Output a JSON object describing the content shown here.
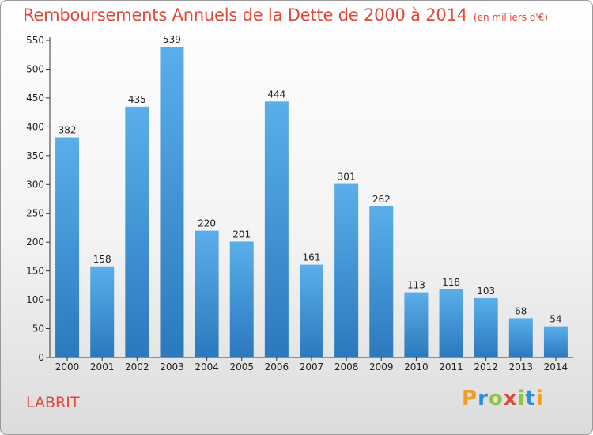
{
  "title": "Remboursements Annuels de la Dette de 2000 à 2014",
  "subtitle": "(en milliers d'€)",
  "commune": "LABRIT",
  "logo": {
    "letters": [
      "P",
      "r",
      "o",
      "x",
      "i",
      "t",
      "i"
    ],
    "colors": [
      "#f39c1f",
      "#2a8fd6",
      "#8cc63f",
      "#e1473a",
      "#8cc63f",
      "#2a8fd6",
      "#f39c1f"
    ]
  },
  "colors": {
    "bar_top": "#5aaeea",
    "bar_bottom": "#2b79bd",
    "title": "#e1473a"
  },
  "chart_data": {
    "type": "bar",
    "title": "Remboursements Annuels de la Dette de 2000 à 2014",
    "subtitle": "(en milliers d'€)",
    "xlabel": "",
    "ylabel": "",
    "categories": [
      "2000",
      "2001",
      "2002",
      "2003",
      "2004",
      "2005",
      "2006",
      "2007",
      "2008",
      "2009",
      "2010",
      "2011",
      "2012",
      "2013",
      "2014"
    ],
    "values": [
      382,
      158,
      435,
      539,
      220,
      201,
      444,
      161,
      301,
      262,
      113,
      118,
      103,
      68,
      54
    ],
    "ylim": [
      0,
      550
    ],
    "yticks": [
      0,
      50,
      100,
      150,
      200,
      250,
      300,
      350,
      400,
      450,
      500,
      550
    ],
    "grid": false,
    "legend": "none"
  }
}
